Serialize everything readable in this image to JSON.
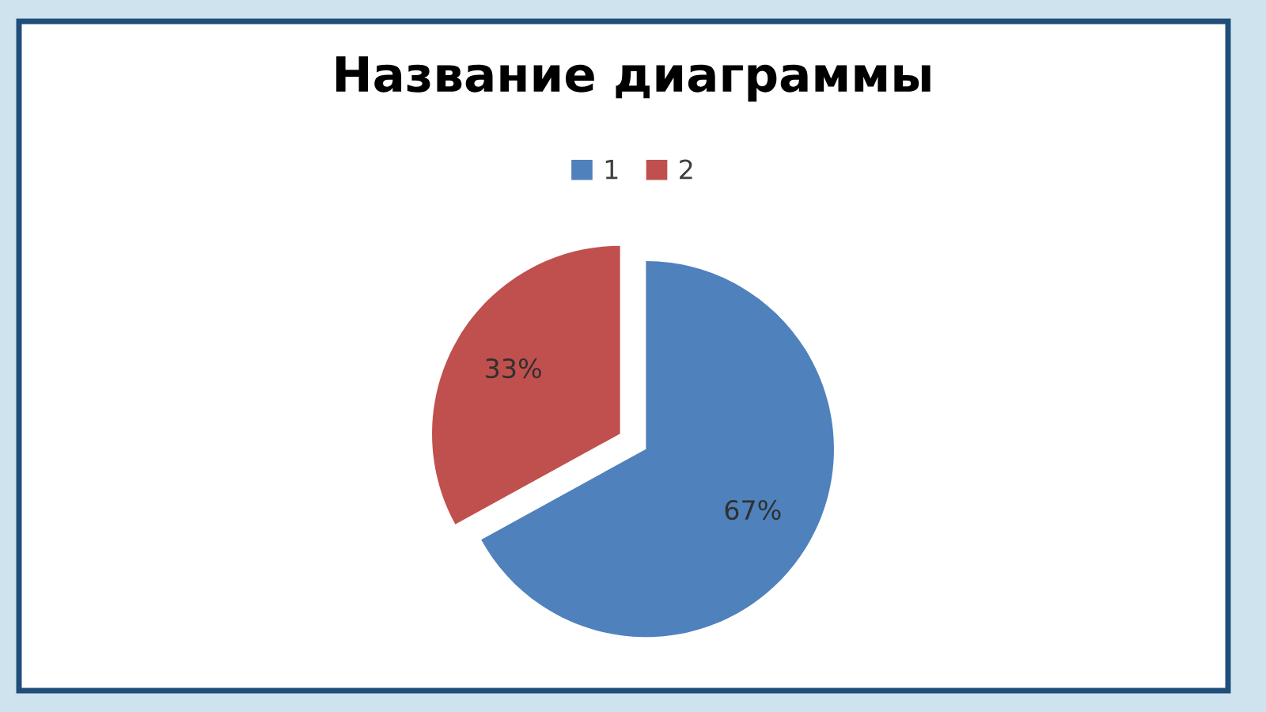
{
  "chart_data": {
    "type": "pie",
    "title": "Название диаграммы",
    "categories": [
      "1",
      "2"
    ],
    "values": [
      67,
      33
    ],
    "colors": [
      "#4f81bd",
      "#c0504d"
    ],
    "value_labels": [
      "67%",
      "33%"
    ],
    "legend": "top"
  }
}
